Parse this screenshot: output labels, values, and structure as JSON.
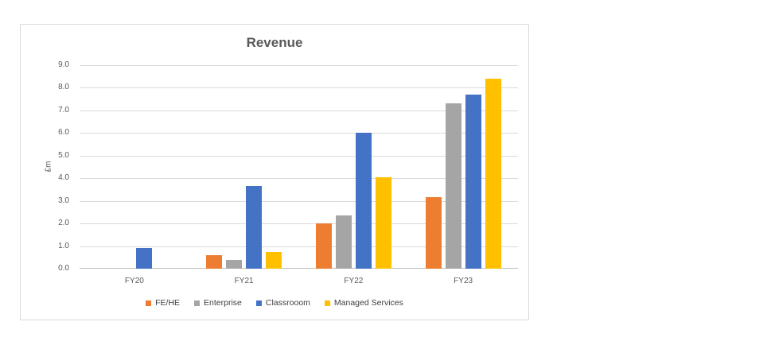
{
  "chart_data": {
    "type": "bar",
    "title": "Revenue",
    "ylabel": "£m",
    "categories": [
      "FY20",
      "FY21",
      "FY22",
      "FY23"
    ],
    "series": [
      {
        "name": "FE/HE",
        "color": "#ED7D31",
        "values": [
          0,
          0.6,
          2.0,
          3.15
        ]
      },
      {
        "name": "Enterprise",
        "color": "#A5A5A5",
        "values": [
          0,
          0.4,
          2.35,
          7.3
        ]
      },
      {
        "name": "Classrooom",
        "color": "#4472C4",
        "values": [
          0.9,
          3.65,
          6.0,
          7.7
        ]
      },
      {
        "name": "Managed Services",
        "color": "#FFC000",
        "values": [
          0,
          0.75,
          4.05,
          8.4
        ]
      }
    ],
    "ylim": [
      0,
      9
    ],
    "ytick_step": 1,
    "ytick_labels": [
      "0.0",
      "1.0",
      "2.0",
      "3.0",
      "4.0",
      "5.0",
      "6.0",
      "7.0",
      "8.0",
      "9.0"
    ],
    "grid": true,
    "legend_position": "bottom"
  }
}
